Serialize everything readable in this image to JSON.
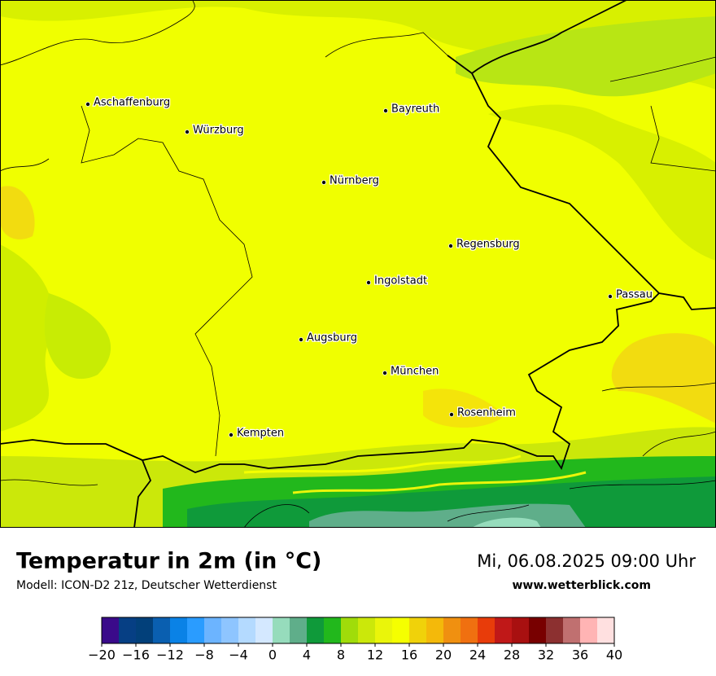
{
  "header": {
    "title": "Temperatur in 2m (in °C)",
    "subtitle": "Modell: ICON-D2 21z, Deutscher Wetterdienst",
    "date": "Mi, 06.08.2025 09:00 Uhr",
    "website": "www.wetterblick.com"
  },
  "cities": [
    {
      "label": "Aschaffenburg"
    },
    {
      "label": "Würzburg"
    },
    {
      "label": "Bayreuth"
    },
    {
      "label": "Nürnberg"
    },
    {
      "label": "Regensburg"
    },
    {
      "label": "Ingolstadt"
    },
    {
      "label": "Passau"
    },
    {
      "label": "Augsburg"
    },
    {
      "label": "München"
    },
    {
      "label": "Rosenheim"
    },
    {
      "label": "Kempten"
    }
  ],
  "colorbar": {
    "range": [
      -20,
      40
    ],
    "colors": [
      "#3a0a8a",
      "#063f84",
      "#02407a",
      "#0a5fb0",
      "#0a82e6",
      "#2a9cff",
      "#6cb4ff",
      "#8ec5ff",
      "#b4daff",
      "#d4e8ff",
      "#96dcbc",
      "#5fae8a",
      "#0f9a3a",
      "#22b81c",
      "#a0dc0a",
      "#cbe80a",
      "#eaf50a",
      "#f5ff00",
      "#f0d20a",
      "#f4b90a",
      "#f09010",
      "#f07010",
      "#e83c0a",
      "#c01818",
      "#a81010",
      "#780000",
      "#8c3030",
      "#c07070",
      "#ffb4b4",
      "#ffe0e0"
    ],
    "ticks": [
      {
        "value": -20,
        "label": "−20"
      },
      {
        "value": -16,
        "label": "−16"
      },
      {
        "value": -12,
        "label": "−12"
      },
      {
        "value": -8,
        "label": "−8"
      },
      {
        "value": -4,
        "label": "−4"
      },
      0,
      4,
      8,
      12,
      16,
      20,
      24,
      28,
      32,
      36,
      40
    ]
  }
}
